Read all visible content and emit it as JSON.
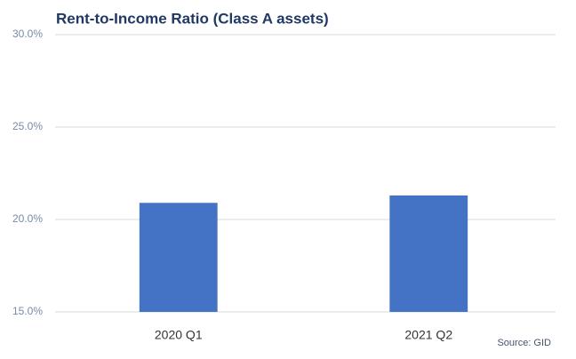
{
  "chart_data": {
    "type": "bar",
    "title": "Rent-to-Income Ratio (Class A assets)",
    "categories": [
      "2020 Q1",
      "2021 Q2"
    ],
    "values": [
      20.9,
      21.3
    ],
    "color": "#4472c4",
    "ylim": [
      15,
      30
    ],
    "yticks": [
      {
        "value": 15,
        "label": "15.0%"
      },
      {
        "value": 20,
        "label": "20.0%"
      },
      {
        "value": 25,
        "label": "25.0%"
      },
      {
        "value": 30,
        "label": "30.0%"
      }
    ],
    "grid": true,
    "source": "Source: GID"
  }
}
